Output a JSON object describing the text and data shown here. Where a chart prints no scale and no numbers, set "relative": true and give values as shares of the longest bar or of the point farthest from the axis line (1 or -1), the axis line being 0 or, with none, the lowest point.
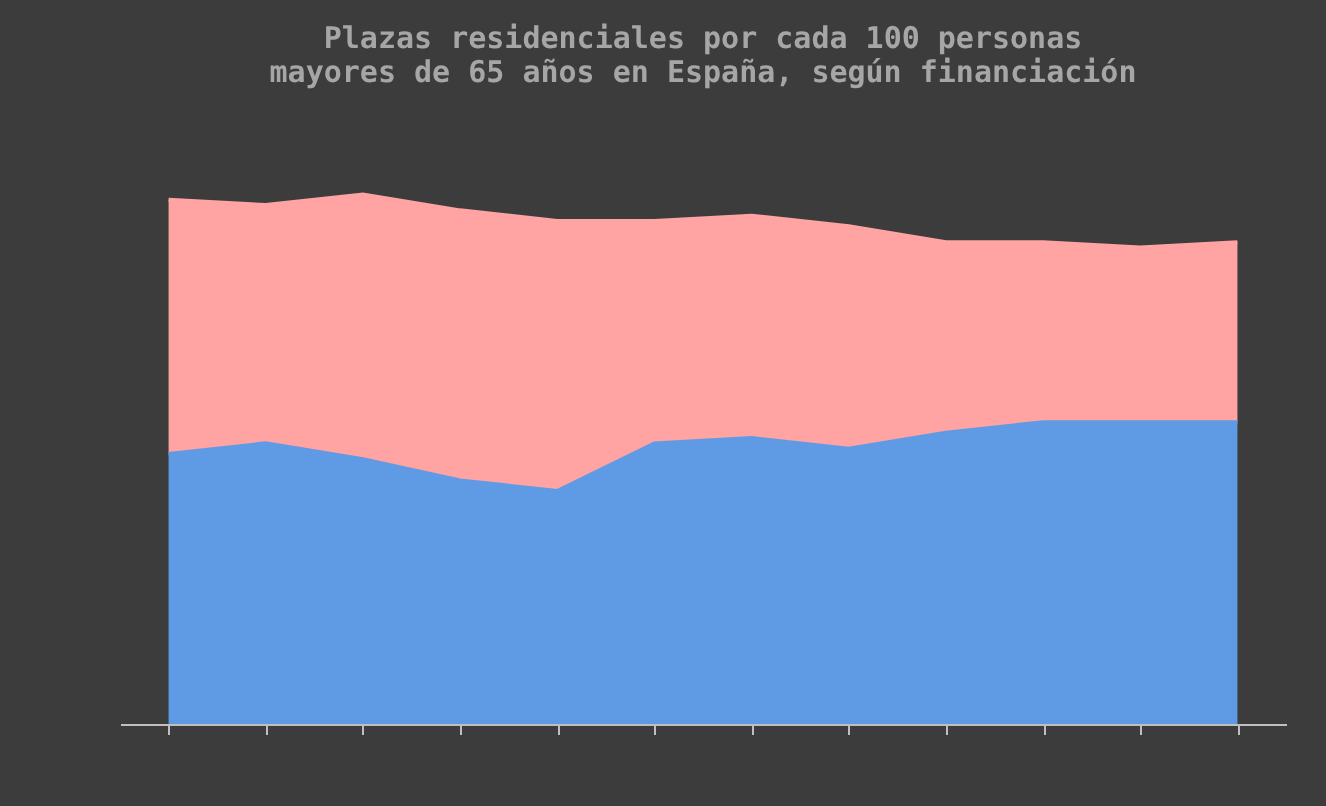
{
  "chart_data": {
    "type": "area",
    "title": "Plazas residenciales por cada 100 personas mayores de 65 años en España, según financiación",
    "relative": true,
    "stacked": true,
    "categories": [
      null,
      null,
      null,
      null,
      null,
      null,
      null,
      null,
      null,
      null,
      null,
      null
    ],
    "series": [
      {
        "color": "#5f9be4",
        "values": [
          0.51,
          0.53,
          0.5,
          0.46,
          0.44,
          0.53,
          0.54,
          0.52,
          0.55,
          0.57,
          0.57,
          0.57
        ]
      },
      {
        "color": "#ffa3a3",
        "values": [
          0.48,
          0.45,
          0.5,
          0.51,
          0.51,
          0.42,
          0.42,
          0.42,
          0.36,
          0.34,
          0.33,
          0.34
        ]
      }
    ]
  }
}
